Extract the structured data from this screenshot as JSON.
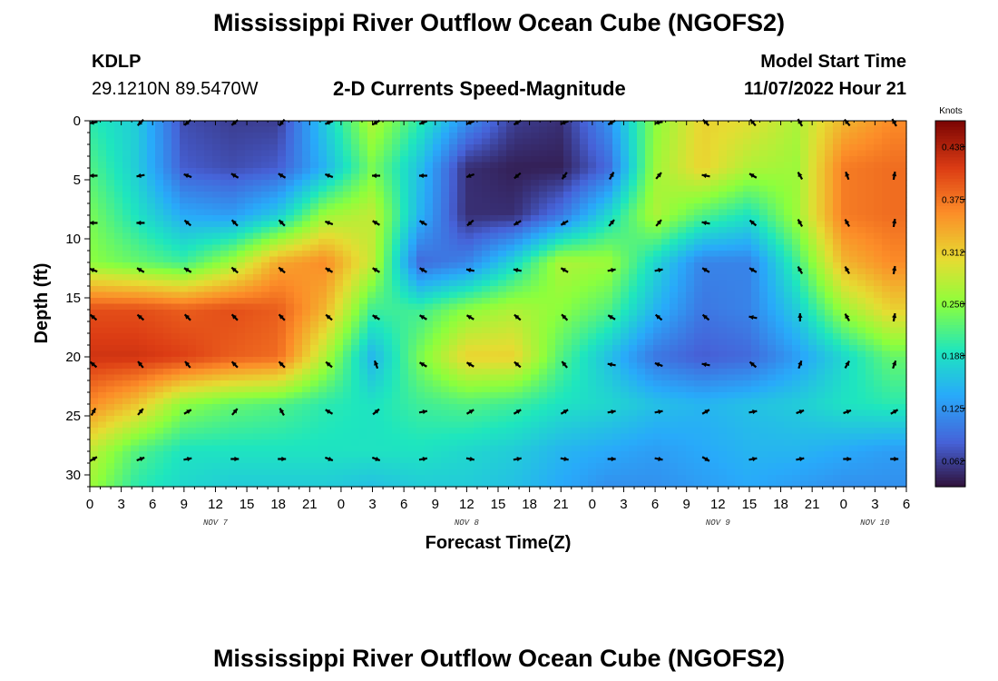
{
  "page": {
    "title": "Mississippi River Outflow Ocean Cube (NGOFS2)",
    "title_repeat": "Mississippi River Outflow Ocean Cube (NGOFS2)",
    "station_id": "KDLP",
    "station_coords": "29.1210N  89.5470W",
    "product": "2-D Currents Speed-Magnitude",
    "model_start_label": "Model Start Time",
    "model_start_value": "11/07/2022 Hour 21"
  },
  "chart_data": {
    "type": "heatmap",
    "title": "2-D Currents Speed-Magnitude",
    "xlabel": "Forecast Time(Z)",
    "ylabel": "Depth (ft)",
    "xlim": [
      0,
      78
    ],
    "ylim": [
      0,
      31
    ],
    "y_ticks": [
      0,
      5,
      10,
      15,
      20,
      25,
      30
    ],
    "x_tick_labels": [
      "0",
      "3",
      "6",
      "9",
      "12",
      "15",
      "18",
      "21",
      "0",
      "3",
      "6",
      "9",
      "12",
      "15",
      "18",
      "21",
      "0",
      "3",
      "6",
      "9",
      "12",
      "15",
      "18",
      "21",
      "0",
      "3",
      "6"
    ],
    "day_labels": [
      {
        "text": "NOV 7",
        "hour": 12
      },
      {
        "text": "NOV 8",
        "hour": 36
      },
      {
        "text": "NOV 9",
        "hour": 60
      },
      {
        "text": "NOV 10",
        "hour": 75
      }
    ],
    "colorbar": {
      "units": "Knots",
      "min": 0.031,
      "max": 0.469,
      "ticks": [
        0.062,
        0.125,
        0.188,
        0.25,
        0.312,
        0.375,
        0.438
      ],
      "tick_labels": [
        "0.062",
        "0.125",
        "0.188",
        "0.250",
        "0.312",
        "0.375",
        "0.438"
      ]
    },
    "speed_hours": [
      0,
      4.5,
      9,
      13.5,
      18,
      22.5,
      27,
      31.5,
      36,
      40.5,
      45,
      49.5,
      54,
      58.5,
      63,
      67.5,
      72,
      76.5
    ],
    "speed_depths": [
      0,
      4,
      8,
      12,
      16,
      20,
      24,
      28,
      31
    ],
    "speed_values": [
      [
        0.2,
        0.17,
        0.07,
        0.06,
        0.06,
        0.17,
        0.27,
        0.2,
        0.12,
        0.06,
        0.05,
        0.12,
        0.25,
        0.31,
        0.3,
        0.27,
        0.33,
        0.36
      ],
      [
        0.22,
        0.17,
        0.08,
        0.07,
        0.08,
        0.15,
        0.24,
        0.16,
        0.05,
        0.04,
        0.04,
        0.09,
        0.26,
        0.31,
        0.27,
        0.26,
        0.37,
        0.38
      ],
      [
        0.24,
        0.19,
        0.14,
        0.13,
        0.17,
        0.26,
        0.28,
        0.15,
        0.05,
        0.05,
        0.1,
        0.18,
        0.27,
        0.22,
        0.19,
        0.26,
        0.37,
        0.38
      ],
      [
        0.25,
        0.23,
        0.21,
        0.26,
        0.34,
        0.36,
        0.28,
        0.09,
        0.11,
        0.18,
        0.27,
        0.26,
        0.18,
        0.11,
        0.11,
        0.21,
        0.33,
        0.36
      ],
      [
        0.4,
        0.4,
        0.39,
        0.4,
        0.39,
        0.33,
        0.21,
        0.21,
        0.25,
        0.27,
        0.25,
        0.22,
        0.15,
        0.1,
        0.11,
        0.17,
        0.26,
        0.31
      ],
      [
        0.42,
        0.42,
        0.41,
        0.39,
        0.38,
        0.27,
        0.15,
        0.24,
        0.31,
        0.31,
        0.22,
        0.16,
        0.1,
        0.08,
        0.09,
        0.13,
        0.18,
        0.23
      ],
      [
        0.36,
        0.32,
        0.25,
        0.23,
        0.22,
        0.2,
        0.19,
        0.21,
        0.22,
        0.21,
        0.19,
        0.18,
        0.16,
        0.15,
        0.16,
        0.17,
        0.19,
        0.2
      ],
      [
        0.28,
        0.22,
        0.19,
        0.19,
        0.19,
        0.19,
        0.19,
        0.19,
        0.18,
        0.17,
        0.15,
        0.14,
        0.13,
        0.14,
        0.15,
        0.15,
        0.14,
        0.13
      ],
      [
        0.26,
        0.2,
        0.18,
        0.17,
        0.17,
        0.17,
        0.16,
        0.17,
        0.17,
        0.16,
        0.14,
        0.12,
        0.12,
        0.13,
        0.14,
        0.13,
        0.12,
        0.12
      ]
    ],
    "vector_hours": [
      0,
      4.5,
      9,
      13.5,
      18,
      22.5,
      27,
      31.5,
      36,
      40.5,
      45,
      49.5,
      54,
      58.5,
      63,
      67.5,
      72,
      76.5
    ],
    "vector_depths": [
      0,
      4.5,
      8.5,
      12.5,
      16.5,
      20.5,
      24.5,
      28.5
    ],
    "vector_directions_deg": [
      [
        260,
        225,
        230,
        230,
        220,
        250,
        240,
        250,
        250,
        240,
        250,
        240,
        260,
        315,
        320,
        330,
        320,
        330
      ],
      [
        270,
        260,
        290,
        300,
        300,
        290,
        270,
        270,
        250,
        230,
        215,
        30,
        40,
        280,
        300,
        330,
        340,
        10
      ],
      [
        270,
        270,
        310,
        315,
        315,
        290,
        300,
        300,
        230,
        240,
        240,
        40,
        40,
        280,
        310,
        330,
        330,
        10
      ],
      [
        290,
        300,
        300,
        310,
        310,
        300,
        300,
        300,
        280,
        280,
        300,
        80,
        80,
        300,
        300,
        330,
        330,
        10
      ],
      [
        310,
        310,
        315,
        315,
        315,
        310,
        300,
        300,
        300,
        310,
        315,
        300,
        310,
        310,
        280,
        0,
        330,
        10
      ],
      [
        310,
        320,
        320,
        315,
        315,
        310,
        340,
        300,
        300,
        310,
        320,
        280,
        290,
        280,
        310,
        20,
        30,
        20
      ],
      [
        30,
        40,
        60,
        40,
        330,
        300,
        50,
        80,
        60,
        60,
        60,
        80,
        80,
        60,
        80,
        70,
        70,
        60
      ],
      [
        60,
        70,
        80,
        90,
        90,
        110,
        110,
        80,
        100,
        80,
        100,
        90,
        100,
        120,
        80,
        80,
        90,
        90
      ]
    ]
  }
}
